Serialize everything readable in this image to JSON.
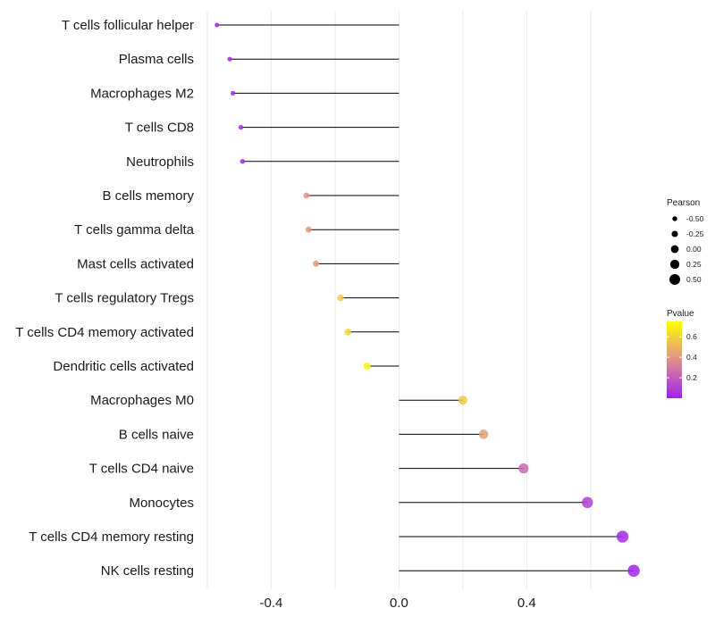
{
  "chart_data": {
    "type": "lollipop",
    "title": "",
    "xlabel": "",
    "ylabel": "",
    "xlim": [
      -0.6,
      0.76
    ],
    "x_ticks": [
      -0.4,
      0.0,
      0.4
    ],
    "x_tick_labels": [
      "-0.4",
      "0.0",
      "0.4"
    ],
    "grid": true,
    "categories": [
      "T cells follicular helper",
      "Plasma cells",
      "Macrophages M2",
      "T cells CD8",
      "Neutrophils",
      "B cells memory",
      "T cells gamma delta",
      "Mast cells activated",
      "T cells regulatory  Tregs ",
      "T cells CD4 memory activated",
      "Dendritic cells activated",
      "Macrophages M0",
      "B cells naive",
      "T cells CD4 naive",
      "Monocytes",
      "T cells CD4 memory resting",
      "NK cells resting"
    ],
    "values": [
      -0.57,
      -0.53,
      -0.52,
      -0.495,
      -0.49,
      -0.29,
      -0.283,
      -0.26,
      -0.183,
      -0.16,
      -0.1,
      0.2,
      0.265,
      0.39,
      0.59,
      0.7,
      0.735
    ],
    "pvalues": [
      0.01,
      0.03,
      0.03,
      0.04,
      0.04,
      0.39,
      0.4,
      0.42,
      0.58,
      0.62,
      0.72,
      0.56,
      0.43,
      0.24,
      0.1,
      0.03,
      0.01
    ],
    "legend": {
      "size_title": "Pearson",
      "size_breaks": [
        -0.5,
        -0.25,
        0.0,
        0.25,
        0.5
      ],
      "size_labels": [
        "-0.50",
        "-0.25",
        "0.00",
        "0.25",
        "0.50"
      ],
      "color_title": "Pvalue",
      "color_breaks": [
        0.2,
        0.4,
        0.6
      ],
      "color_labels": [
        "0.2",
        "0.4",
        "0.6"
      ],
      "color_range": [
        0.0,
        0.75
      ],
      "color_low": "#a020f0",
      "color_mid": "#e0908a",
      "color_high": "#ffff00",
      "position": "right"
    }
  }
}
